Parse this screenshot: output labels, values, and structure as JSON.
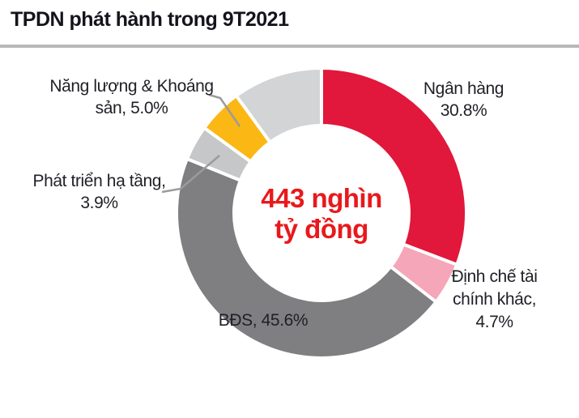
{
  "header": {
    "title": "TPDN phát hành trong 9T2021"
  },
  "chart_data": {
    "type": "pie",
    "subtype": "donut",
    "title": "TPDN phát hành trong 9T2021",
    "center_text": "443 nghìn tỷ đồng",
    "units": "%",
    "segments": [
      {
        "label": "Ngân hàng",
        "value": 30.8,
        "color": "#e1173b"
      },
      {
        "label": "Định chế tài chính khác",
        "value": 4.7,
        "color": "#f5a6b8"
      },
      {
        "label": "BĐS",
        "value": 45.6,
        "color": "#7f7f82"
      },
      {
        "label": "Phát triển hạ tầng",
        "value": 3.9,
        "color": "#c6c7c9"
      },
      {
        "label": "Năng lượng & Khoáng sản",
        "value": 5.0,
        "color": "#fbb713"
      },
      {
        "label": "",
        "value": 10.0,
        "color": "#d3d4d6"
      }
    ],
    "layout_hints": {
      "start_angle_deg": 0,
      "direction": "clockwise",
      "segment_gap_color": "#ffffff",
      "legend": "none, direct callout labels"
    }
  },
  "labels": {
    "nang_luong": {
      "lines": [
        "Năng lượng & Khoáng",
        "sản, 5.0%"
      ]
    },
    "ngan_hang": {
      "lines": [
        "Ngân hàng",
        "30.8%"
      ]
    },
    "phat_trien": {
      "lines": [
        "Phát triển hạ tầng,",
        "3.9%"
      ]
    },
    "dinh_che": {
      "lines": [
        "Định chế tài",
        "chính khác,",
        "4.7%"
      ]
    },
    "bds": {
      "lines": [
        "BĐS, 45.6%"
      ]
    },
    "center": {
      "lines": [
        "443 nghìn",
        "tỷ đồng"
      ]
    }
  }
}
